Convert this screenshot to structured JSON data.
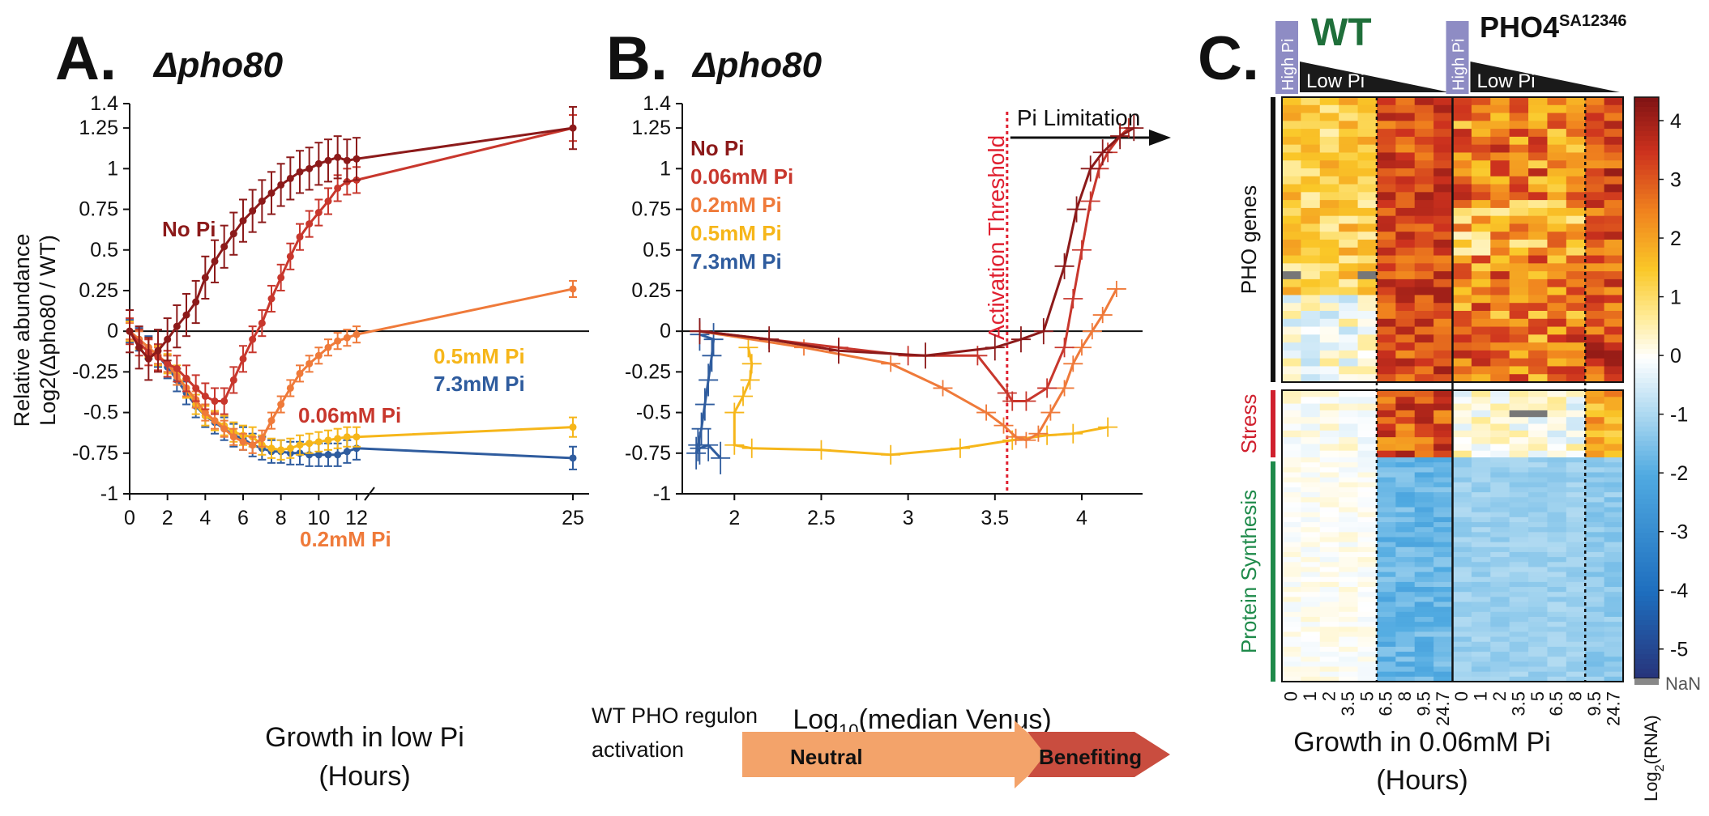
{
  "colors": {
    "No Pi": "#8c1a1a",
    "0.06mM Pi": "#c8372d",
    "0.2mM Pi": "#ef7a3a",
    "0.5mM Pi": "#f6b61a",
    "7.3mM Pi": "#2f5c9e",
    "wt_label": "#1f6f3a",
    "high_pi_tag": "#8e8cc4",
    "stress_bar": "#d0202e",
    "protein_bar": "#1e8a4a"
  },
  "chart_data": [
    {
      "panel": "A.",
      "type": "line",
      "title": "Δpho80",
      "xlabel": "Growth in low Pi",
      "xlabel2": "(Hours)",
      "ylabel": "Relative abundance",
      "ylabel2": "Log2(Δpho80 / WT)",
      "xticks": [
        "0",
        "2",
        "4",
        "6",
        "8",
        "10",
        "12",
        "25"
      ],
      "xtick_values": [
        0,
        2,
        4,
        6,
        8,
        10,
        12,
        25
      ],
      "yticks": [
        "1.4",
        "1.25",
        "1",
        "0.75",
        "0.5",
        "0.25",
        "0",
        "-0.25",
        "-0.5",
        "-0.75",
        "-1"
      ],
      "ytick_values": [
        1.4,
        1.25,
        1,
        0.75,
        0.5,
        0.25,
        0,
        -0.25,
        -0.5,
        -0.75,
        -1
      ],
      "ylim": [
        -1,
        1.4
      ],
      "axis_break_x": [
        12,
        25
      ],
      "series": [
        {
          "name": "No Pi",
          "x": [
            0,
            0.5,
            1,
            1.5,
            2,
            2.5,
            3,
            3.5,
            4,
            4.5,
            5,
            5.5,
            6,
            6.5,
            7,
            7.5,
            8,
            8.5,
            9,
            9.5,
            10,
            10.5,
            11,
            11.5,
            12,
            25
          ],
          "y": [
            0,
            -0.1,
            -0.17,
            -0.12,
            -0.05,
            0.03,
            0.1,
            0.18,
            0.33,
            0.43,
            0.52,
            0.6,
            0.68,
            0.74,
            0.8,
            0.85,
            0.9,
            0.94,
            0.98,
            1.0,
            1.03,
            1.05,
            1.07,
            1.05,
            1.06,
            1.25
          ],
          "err": 0.13
        },
        {
          "name": "0.06mM Pi",
          "x": [
            0,
            0.5,
            1,
            1.5,
            2,
            2.5,
            3,
            3.5,
            4,
            4.5,
            5,
            5.5,
            6,
            6.5,
            7,
            7.5,
            8,
            8.5,
            9,
            9.5,
            10,
            10.5,
            11,
            11.5,
            12,
            25
          ],
          "y": [
            0,
            -0.07,
            -0.13,
            -0.16,
            -0.2,
            -0.23,
            -0.29,
            -0.35,
            -0.4,
            -0.43,
            -0.43,
            -0.3,
            -0.17,
            -0.05,
            0.05,
            0.2,
            0.33,
            0.46,
            0.58,
            0.66,
            0.73,
            0.8,
            0.88,
            0.92,
            0.93,
            1.25
          ],
          "err": 0.08
        },
        {
          "name": "0.2mM Pi",
          "x": [
            0,
            0.5,
            1,
            1.5,
            2,
            2.5,
            3,
            3.5,
            4,
            4.5,
            5,
            5.5,
            6,
            6.5,
            7,
            7.5,
            8,
            8.5,
            9,
            9.5,
            10,
            10.5,
            11,
            11.5,
            12,
            25
          ],
          "y": [
            0,
            -0.05,
            -0.1,
            -0.15,
            -0.2,
            -0.28,
            -0.35,
            -0.42,
            -0.5,
            -0.55,
            -0.6,
            -0.65,
            -0.68,
            -0.7,
            -0.66,
            -0.55,
            -0.45,
            -0.35,
            -0.26,
            -0.2,
            -0.15,
            -0.1,
            -0.06,
            -0.04,
            -0.02,
            0.26
          ],
          "err": 0.05
        },
        {
          "name": "0.5mM Pi",
          "x": [
            0,
            0.5,
            1,
            1.5,
            2,
            2.5,
            3,
            3.5,
            4,
            4.5,
            5,
            5.5,
            6,
            6.5,
            7,
            7.5,
            8,
            8.5,
            9,
            9.5,
            10,
            10.5,
            11,
            11.5,
            12,
            25
          ],
          "y": [
            0,
            -0.05,
            -0.1,
            -0.15,
            -0.2,
            -0.27,
            -0.35,
            -0.45,
            -0.52,
            -0.55,
            -0.58,
            -0.62,
            -0.64,
            -0.65,
            -0.7,
            -0.72,
            -0.73,
            -0.72,
            -0.7,
            -0.69,
            -0.68,
            -0.67,
            -0.66,
            -0.65,
            -0.65,
            -0.59
          ],
          "err": 0.06
        },
        {
          "name": "7.3mM Pi",
          "x": [
            0,
            0.5,
            1,
            1.5,
            2,
            2.5,
            3,
            3.5,
            4,
            4.5,
            5,
            5.5,
            6,
            6.5,
            7,
            7.5,
            8,
            8.5,
            9,
            9.5,
            10,
            10.5,
            11,
            11.5,
            12,
            25
          ],
          "y": [
            0,
            -0.05,
            -0.1,
            -0.15,
            -0.22,
            -0.3,
            -0.38,
            -0.46,
            -0.52,
            -0.56,
            -0.6,
            -0.64,
            -0.66,
            -0.7,
            -0.72,
            -0.74,
            -0.74,
            -0.75,
            -0.75,
            -0.76,
            -0.76,
            -0.76,
            -0.76,
            -0.74,
            -0.72,
            -0.78
          ],
          "err": 0.07
        }
      ],
      "series_labels": [
        "No Pi",
        "0.06mM Pi",
        "0.2mM Pi",
        "0.5mM Pi",
        "7.3mM Pi"
      ]
    },
    {
      "panel": "B.",
      "type": "line",
      "title": "Δpho80",
      "xlabel": "Log10(median Venus)",
      "xlabel_base": "Log",
      "xlabel_sub": "10",
      "xlabel_rest": "(median Venus)",
      "xticks": [
        "2",
        "2.5",
        "3",
        "3.5",
        "4"
      ],
      "xtick_values": [
        2,
        2.5,
        3,
        3.5,
        4
      ],
      "yticks": [
        "1.4",
        "1.25",
        "1",
        "0.75",
        "0.5",
        "0.25",
        "0",
        "-0.25",
        "-0.5",
        "-0.75",
        "-1"
      ],
      "ytick_values": [
        1.4,
        1.25,
        1,
        0.75,
        0.5,
        0.25,
        0,
        -0.25,
        -0.5,
        -0.75,
        -1
      ],
      "xlim": [
        1.7,
        4.35
      ],
      "ylim": [
        -1,
        1.4
      ],
      "threshold_x": 3.57,
      "threshold_label": "Activation Threshold",
      "limitation_label": "Pi Limitation",
      "legend": [
        "No Pi",
        "0.06mM Pi",
        "0.2mM Pi",
        "0.5mM Pi",
        "7.3mM Pi"
      ],
      "series": [
        {
          "name": "No Pi",
          "x": [
            1.8,
            2.2,
            2.6,
            3.1,
            3.5,
            3.65,
            3.78,
            3.9,
            3.97,
            4.05,
            4.12,
            4.22,
            4.3
          ],
          "y": [
            0,
            -0.05,
            -0.12,
            -0.15,
            -0.1,
            -0.05,
            0,
            0.4,
            0.75,
            1.0,
            1.1,
            1.2,
            1.25
          ],
          "err": 0.08
        },
        {
          "name": "0.06mM Pi",
          "x": [
            1.8,
            2.2,
            2.6,
            3.0,
            3.4,
            3.57,
            3.6,
            3.68,
            3.8,
            3.9,
            3.95,
            4.0,
            4.05,
            4.1,
            4.15,
            4.22,
            4.27
          ],
          "y": [
            0,
            -0.05,
            -0.1,
            -0.15,
            -0.15,
            -0.38,
            -0.43,
            -0.43,
            -0.35,
            -0.1,
            0.2,
            0.5,
            0.8,
            1.0,
            1.1,
            1.2,
            1.25
          ],
          "err": 0.06
        },
        {
          "name": "0.2mM Pi",
          "x": [
            1.8,
            2.4,
            2.9,
            3.2,
            3.45,
            3.55,
            3.62,
            3.68,
            3.75,
            3.82,
            3.9,
            3.95,
            4.0,
            4.06,
            4.12,
            4.2
          ],
          "y": [
            0,
            -0.1,
            -0.2,
            -0.35,
            -0.5,
            -0.58,
            -0.65,
            -0.67,
            -0.63,
            -0.5,
            -0.35,
            -0.2,
            -0.1,
            0,
            0.1,
            0.26
          ],
          "err": 0.05
        },
        {
          "name": "0.5mM Pi",
          "x": [
            2.08,
            2.1,
            2.09,
            2.05,
            2.0,
            2.0,
            2.1,
            2.5,
            2.9,
            3.3,
            3.6,
            3.8,
            3.95,
            4.15
          ],
          "y": [
            -0.1,
            -0.2,
            -0.3,
            -0.4,
            -0.5,
            -0.7,
            -0.72,
            -0.73,
            -0.76,
            -0.72,
            -0.67,
            -0.64,
            -0.63,
            -0.59
          ],
          "err": 0.06
        },
        {
          "name": "7.3mM Pi",
          "x": [
            1.8,
            1.88,
            1.87,
            1.85,
            1.83,
            1.81,
            1.79,
            1.78,
            1.8,
            1.85,
            1.92
          ],
          "y": [
            -0.02,
            -0.05,
            -0.15,
            -0.3,
            -0.45,
            -0.6,
            -0.7,
            -0.75,
            -0.72,
            -0.7,
            -0.78
          ],
          "err": 0.1
        }
      ],
      "regulon_label": "WT PHO regulon",
      "regulon_label2": "activation",
      "neutral_label": "Neutral",
      "benefiting_label": "Benefiting"
    },
    {
      "panel": "C.",
      "type": "heatmap",
      "wt_label": "WT",
      "mutant_label": "PHO4",
      "mutant_sup": "SA12346",
      "high_pi_label": "High Pi",
      "low_pi_label": "Low Pi",
      "row_groups": [
        "PHO genes",
        "Stress",
        "Protein Synthesis"
      ],
      "xticks_wt": [
        "0",
        "1",
        "2",
        "3.5",
        "5",
        "6.5",
        "8",
        "9.5",
        "24.7"
      ],
      "xticks_mut": [
        "0",
        "1",
        "2",
        "3.5",
        "5",
        "6.5",
        "8",
        "9.5",
        "24.7"
      ],
      "xlabel": "Growth in 0.06mM Pi",
      "xlabel2": "(Hours)",
      "colorbar_ticks": [
        "4",
        "3",
        "2",
        "1",
        "0",
        "-1",
        "-2",
        "-3",
        "-4",
        "-5"
      ],
      "colorbar_values": [
        4,
        3,
        2,
        1,
        0,
        -1,
        -2,
        -3,
        -4,
        -5
      ],
      "colorbar_range": [
        -5.5,
        4.4
      ],
      "colorbar_label": "Log2(RNA)",
      "colorbar_label_base": "Log",
      "colorbar_label_sub": "2",
      "colorbar_label_rest": "(RNA)",
      "nan_label": "NaN"
    }
  ]
}
